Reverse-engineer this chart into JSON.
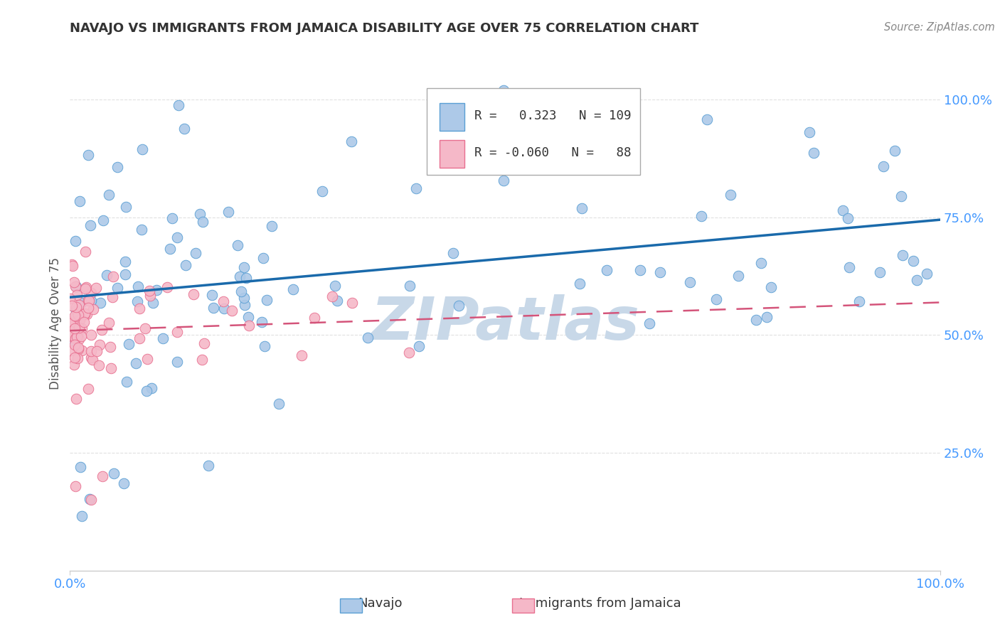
{
  "title": "NAVAJO VS IMMIGRANTS FROM JAMAICA DISABILITY AGE OVER 75 CORRELATION CHART",
  "source": "Source: ZipAtlas.com",
  "ylabel": "Disability Age Over 75",
  "legend_navajo": "Navajo",
  "legend_jamaica": "Immigrants from Jamaica",
  "r_navajo": 0.323,
  "n_navajo": 109,
  "r_jamaica": -0.06,
  "n_jamaica": 88,
  "navajo_color": "#adc9e8",
  "navajo_edge_color": "#5a9fd4",
  "navajo_line_color": "#1a6aab",
  "jamaica_color": "#f5b8c8",
  "jamaica_edge_color": "#e87090",
  "jamaica_line_color": "#d4547a",
  "watermark_color": "#c8d8e8",
  "title_color": "#333333",
  "source_color": "#888888",
  "ylabel_color": "#555555",
  "tick_color": "#4499ff",
  "grid_color": "#e0e0e0",
  "spine_color": "#cccccc",
  "legend_border_color": "#aaaaaa",
  "legend_text_color": "#333333"
}
